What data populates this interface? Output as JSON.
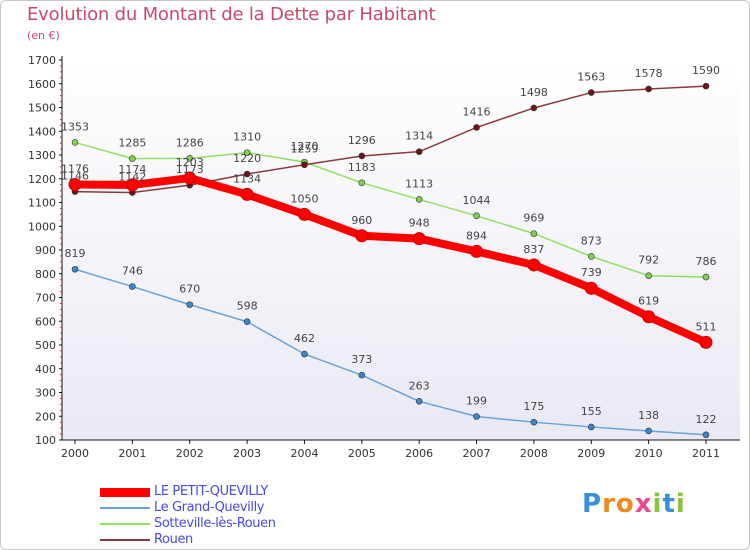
{
  "title": "Evolution du Montant de la Dette par Habitant",
  "subtitle": "(en €)",
  "brand": {
    "letters": [
      "P",
      "r",
      "o",
      "x",
      "i",
      "t",
      "i"
    ],
    "colors": [
      "#3a8fd8",
      "#f08a1c",
      "#f08a1c",
      "#e84a8a",
      "#8ac43a",
      "#3a8fd8",
      "#8ac43a"
    ]
  },
  "chart_data": {
    "type": "line",
    "title": "Evolution du Montant de la Dette par Habitant",
    "ylabel": "(en €)",
    "xlabel": "",
    "x": [
      "2000",
      "2001",
      "2002",
      "2003",
      "2004",
      "2005",
      "2006",
      "2007",
      "2008",
      "2009",
      "2010",
      "2011"
    ],
    "ylim": [
      100,
      1700
    ],
    "yticks": [
      100,
      200,
      300,
      400,
      500,
      600,
      700,
      800,
      900,
      1000,
      1100,
      1200,
      1300,
      1400,
      1500,
      1600,
      1700
    ],
    "grid": false,
    "legend_position": "bottom-left",
    "series": [
      {
        "name": "LE PETIT-QUEVILLY",
        "color": "#ff0000",
        "marker_color": "#ff0000",
        "line_width": 8,
        "marker_radius": 6,
        "values": [
          1176,
          1174,
          1203,
          1134,
          1050,
          960,
          948,
          894,
          837,
          739,
          619,
          511
        ]
      },
      {
        "name": "Le Grand-Quevilly",
        "color": "#6aa3d5",
        "marker_color": "#3a86d0",
        "line_width": 1.5,
        "marker_radius": 3,
        "values": [
          819,
          746,
          670,
          598,
          462,
          373,
          263,
          199,
          175,
          155,
          138,
          122
        ]
      },
      {
        "name": "Sotteville-lès-Rouen",
        "color": "#8fe066",
        "marker_color": "#7ed14a",
        "line_width": 1.5,
        "marker_radius": 3,
        "values": [
          1353,
          1285,
          1286,
          1310,
          1270,
          1183,
          1113,
          1044,
          969,
          873,
          792,
          786
        ]
      },
      {
        "name": "Rouen",
        "color": "#8a3a3a",
        "marker_color": "#6e1414",
        "line_width": 1.5,
        "marker_radius": 3,
        "values": [
          1146,
          1142,
          1173,
          1220,
          1259,
          1296,
          1314,
          1416,
          1498,
          1563,
          1578,
          1590
        ]
      }
    ]
  }
}
